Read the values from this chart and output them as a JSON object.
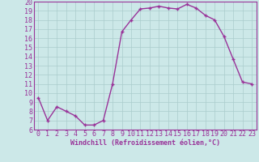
{
  "x": [
    0,
    1,
    2,
    3,
    4,
    5,
    6,
    7,
    8,
    9,
    10,
    11,
    12,
    13,
    14,
    15,
    16,
    17,
    18,
    19,
    20,
    21,
    22,
    23
  ],
  "y": [
    9.5,
    7.0,
    8.5,
    8.0,
    7.5,
    6.5,
    6.5,
    7.0,
    11.0,
    16.7,
    18.0,
    19.2,
    19.3,
    19.5,
    19.3,
    19.2,
    19.7,
    19.3,
    18.5,
    18.0,
    16.2,
    13.7,
    11.2,
    11.0
  ],
  "line_color": "#993399",
  "marker": "+",
  "markersize": 3,
  "linewidth": 1.0,
  "xlim": [
    -0.5,
    23.5
  ],
  "ylim": [
    6,
    20
  ],
  "yticks": [
    6,
    7,
    8,
    9,
    10,
    11,
    12,
    13,
    14,
    15,
    16,
    17,
    18,
    19,
    20
  ],
  "xticks": [
    0,
    1,
    2,
    3,
    4,
    5,
    6,
    7,
    8,
    9,
    10,
    11,
    12,
    13,
    14,
    15,
    16,
    17,
    18,
    19,
    20,
    21,
    22,
    23
  ],
  "xlabel": "Windchill (Refroidissement éolien,°C)",
  "xlabel_fontsize": 6,
  "tick_fontsize": 6,
  "bg_color": "#cce8e8",
  "grid_color": "#aacccc",
  "line_purple": "#993399",
  "title": ""
}
